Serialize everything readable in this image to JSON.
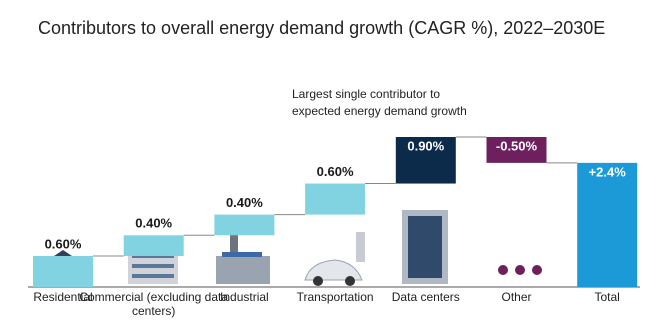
{
  "chart_data": {
    "type": "waterfall",
    "title": "Contributors to overall energy demand growth (CAGR %), 2022–2030E",
    "annotation": "Largest single contributor to expected energy demand growth",
    "categories": [
      "Residential",
      "Commercial (excluding data centers)",
      "Industrial",
      "Transportation",
      "Data centers",
      "Other",
      "Total"
    ],
    "values": [
      0.6,
      0.4,
      0.4,
      0.6,
      0.9,
      -0.5,
      2.4
    ],
    "value_labels": [
      "0.60%",
      "0.40%",
      "0.40%",
      "0.60%",
      "0.90%",
      "-0.50%",
      "+2.4%"
    ],
    "is_total": [
      false,
      false,
      false,
      false,
      false,
      false,
      true
    ],
    "colors": [
      "#82d3e2",
      "#82d3e2",
      "#82d3e2",
      "#82d3e2",
      "#0c2b4b",
      "#6d1f5e",
      "#1b9ad7"
    ]
  }
}
